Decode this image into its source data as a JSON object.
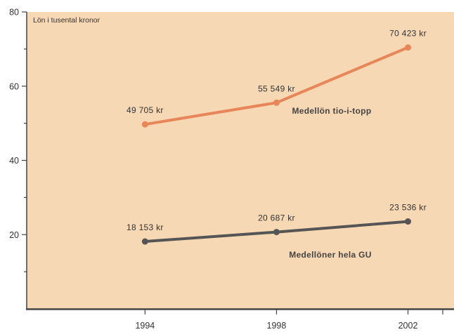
{
  "chart_data": {
    "type": "line",
    "ylabel": "Lön i tusental kronor",
    "xlabel": "",
    "title": "",
    "x": [
      1994,
      1998,
      2002
    ],
    "x_tick_labels": [
      "1994",
      "1998",
      "2002"
    ],
    "ylim": [
      0,
      80
    ],
    "xlim": [
      1990.4,
      2003.4
    ],
    "y_ticks": [
      20,
      40,
      60,
      80
    ],
    "y_tick_labels": [
      "20",
      "40",
      "60",
      "80"
    ],
    "y_minor_ticks": [
      10,
      30,
      50,
      70
    ],
    "grid": false,
    "legend": "none",
    "background_color": "#f7d8b4",
    "series": [
      {
        "name": "Medellön tio-i-topp",
        "values": [
          49.705,
          55.549,
          70.423
        ],
        "labels": [
          "49 705 kr",
          "55 549 kr",
          "70 423 kr"
        ],
        "color": "#e8865a"
      },
      {
        "name": "Medellöner hela GU",
        "values": [
          18.153,
          20.687,
          23.536
        ],
        "labels": [
          "18 153 kr",
          "20 687 kr",
          "23 536 kr"
        ],
        "color": "#555555"
      }
    ]
  }
}
